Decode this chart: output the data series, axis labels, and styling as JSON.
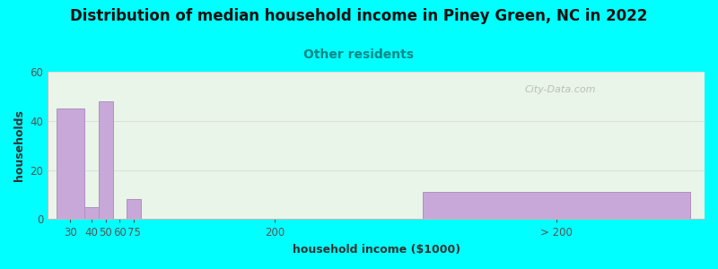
{
  "title": "Distribution of median household income in Piney Green, NC in 2022",
  "subtitle": "Other residents",
  "xlabel": "household income ($1000)",
  "ylabel": "households",
  "background_outer": "#00FFFF",
  "background_inner_top": "#e8f5e8",
  "background_inner_bottom": "#f0ffe8",
  "bar_color": "#c8a8d8",
  "bar_edge_color": "#b090c0",
  "title_fontsize": 12,
  "subtitle_fontsize": 10,
  "subtitle_color": "#008888",
  "axis_label_fontsize": 9,
  "tick_fontsize": 8.5,
  "tick_color": "#555555",
  "values": [
    45,
    5,
    48,
    0,
    8,
    0,
    11
  ],
  "bar_lefts": [
    0,
    10,
    15,
    20,
    25,
    75,
    130
  ],
  "bar_widths": [
    10,
    5,
    5,
    5,
    5,
    5,
    95
  ],
  "ylim": [
    0,
    60
  ],
  "yticks": [
    0,
    20,
    40,
    60
  ],
  "xtick_positions": [
    5,
    12.5,
    17.5,
    22.5,
    27.5,
    77.5,
    177.5
  ],
  "xtick_labels": [
    "30",
    "40",
    "50",
    "60",
    "75",
    "200",
    "> 200"
  ],
  "xlim": [
    -3,
    230
  ],
  "watermark": "City-Data.com"
}
